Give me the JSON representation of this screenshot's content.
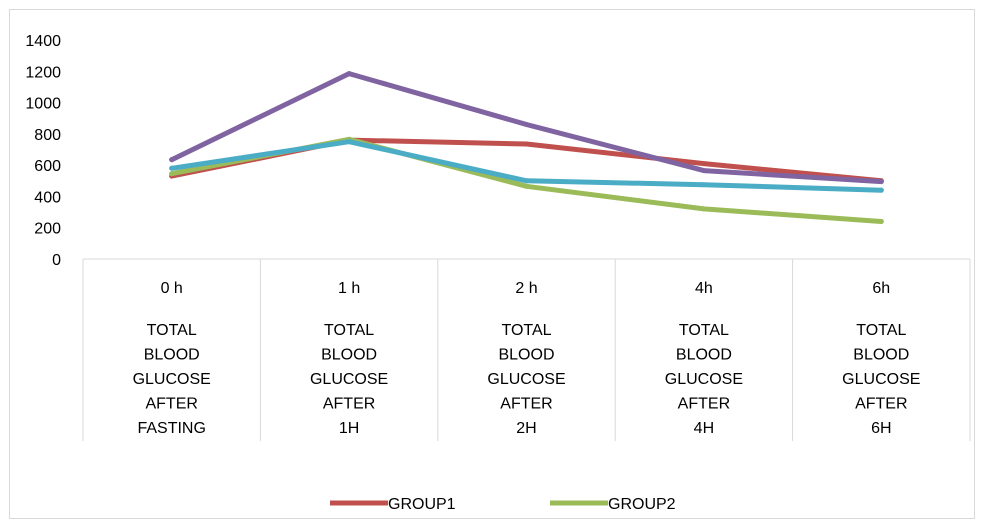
{
  "chart_data": {
    "type": "line",
    "title": "",
    "xlabel": "",
    "ylabel": "",
    "ylim": [
      0,
      1400
    ],
    "yticks": [
      0,
      200,
      400,
      600,
      800,
      1000,
      1200,
      1400
    ],
    "grid": false,
    "legend_position": "bottom",
    "categories": [
      {
        "top": "0 h",
        "bottom": [
          "TOTAL",
          "BLOOD",
          "GLUCOSE",
          "AFTER",
          "FASTING"
        ]
      },
      {
        "top": "1 h",
        "bottom": [
          "TOTAL",
          "BLOOD",
          "GLUCOSE",
          "AFTER",
          "1H"
        ]
      },
      {
        "top": "2 h",
        "bottom": [
          "TOTAL",
          "BLOOD",
          "GLUCOSE",
          "AFTER",
          "2H"
        ]
      },
      {
        "top": "4h",
        "bottom": [
          "TOTAL",
          "BLOOD",
          "GLUCOSE",
          "AFTER",
          "4H"
        ]
      },
      {
        "top": "6h",
        "bottom": [
          "TOTAL",
          "BLOOD",
          "GLUCOSE",
          "AFTER",
          "6H"
        ]
      }
    ],
    "series": [
      {
        "name": "GROUP1",
        "color": "#c0504d",
        "values": [
          530,
          760,
          735,
          610,
          500
        ],
        "in_legend": true
      },
      {
        "name": "GROUP2",
        "color": "#9bbb59",
        "values": [
          545,
          765,
          465,
          320,
          240
        ],
        "in_legend": true
      },
      {
        "name": "",
        "color": "#8064a2",
        "values": [
          635,
          1185,
          860,
          565,
          495
        ],
        "in_legend": false
      },
      {
        "name": "",
        "color": "#4bacc6",
        "values": [
          580,
          750,
          500,
          475,
          440
        ],
        "in_legend": false
      }
    ]
  }
}
